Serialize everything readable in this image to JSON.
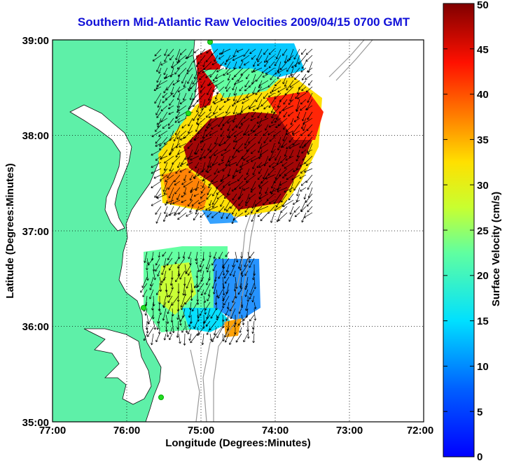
{
  "title": "Southern Mid-Atlantic Raw Velocities 2009/04/15 0700 GMT",
  "xlabel": "Longitude (Degrees:Minutes)",
  "ylabel": "Latitude (Degrees:Minutes)",
  "colorbar_label": "Surface Velocity (cm/s)",
  "x_ticks": [
    "77:00",
    "76:00",
    "75:00",
    "74:00",
    "73:00",
    "72:00"
  ],
  "y_ticks": [
    "39:00",
    "38:00",
    "37:00",
    "36:00",
    "35:00"
  ],
  "colorbar_ticks": [
    "0",
    "5",
    "10",
    "15",
    "20",
    "25",
    "30",
    "35",
    "40",
    "45",
    "50"
  ],
  "map": {
    "lon_range": [
      -77,
      -72
    ],
    "lat_range": [
      35,
      39
    ],
    "velocity_range": [
      0,
      50
    ],
    "land_color": "#5ef0a8",
    "grid": "dotted",
    "colormap": "jet",
    "station_color": "#22dd22"
  }
}
